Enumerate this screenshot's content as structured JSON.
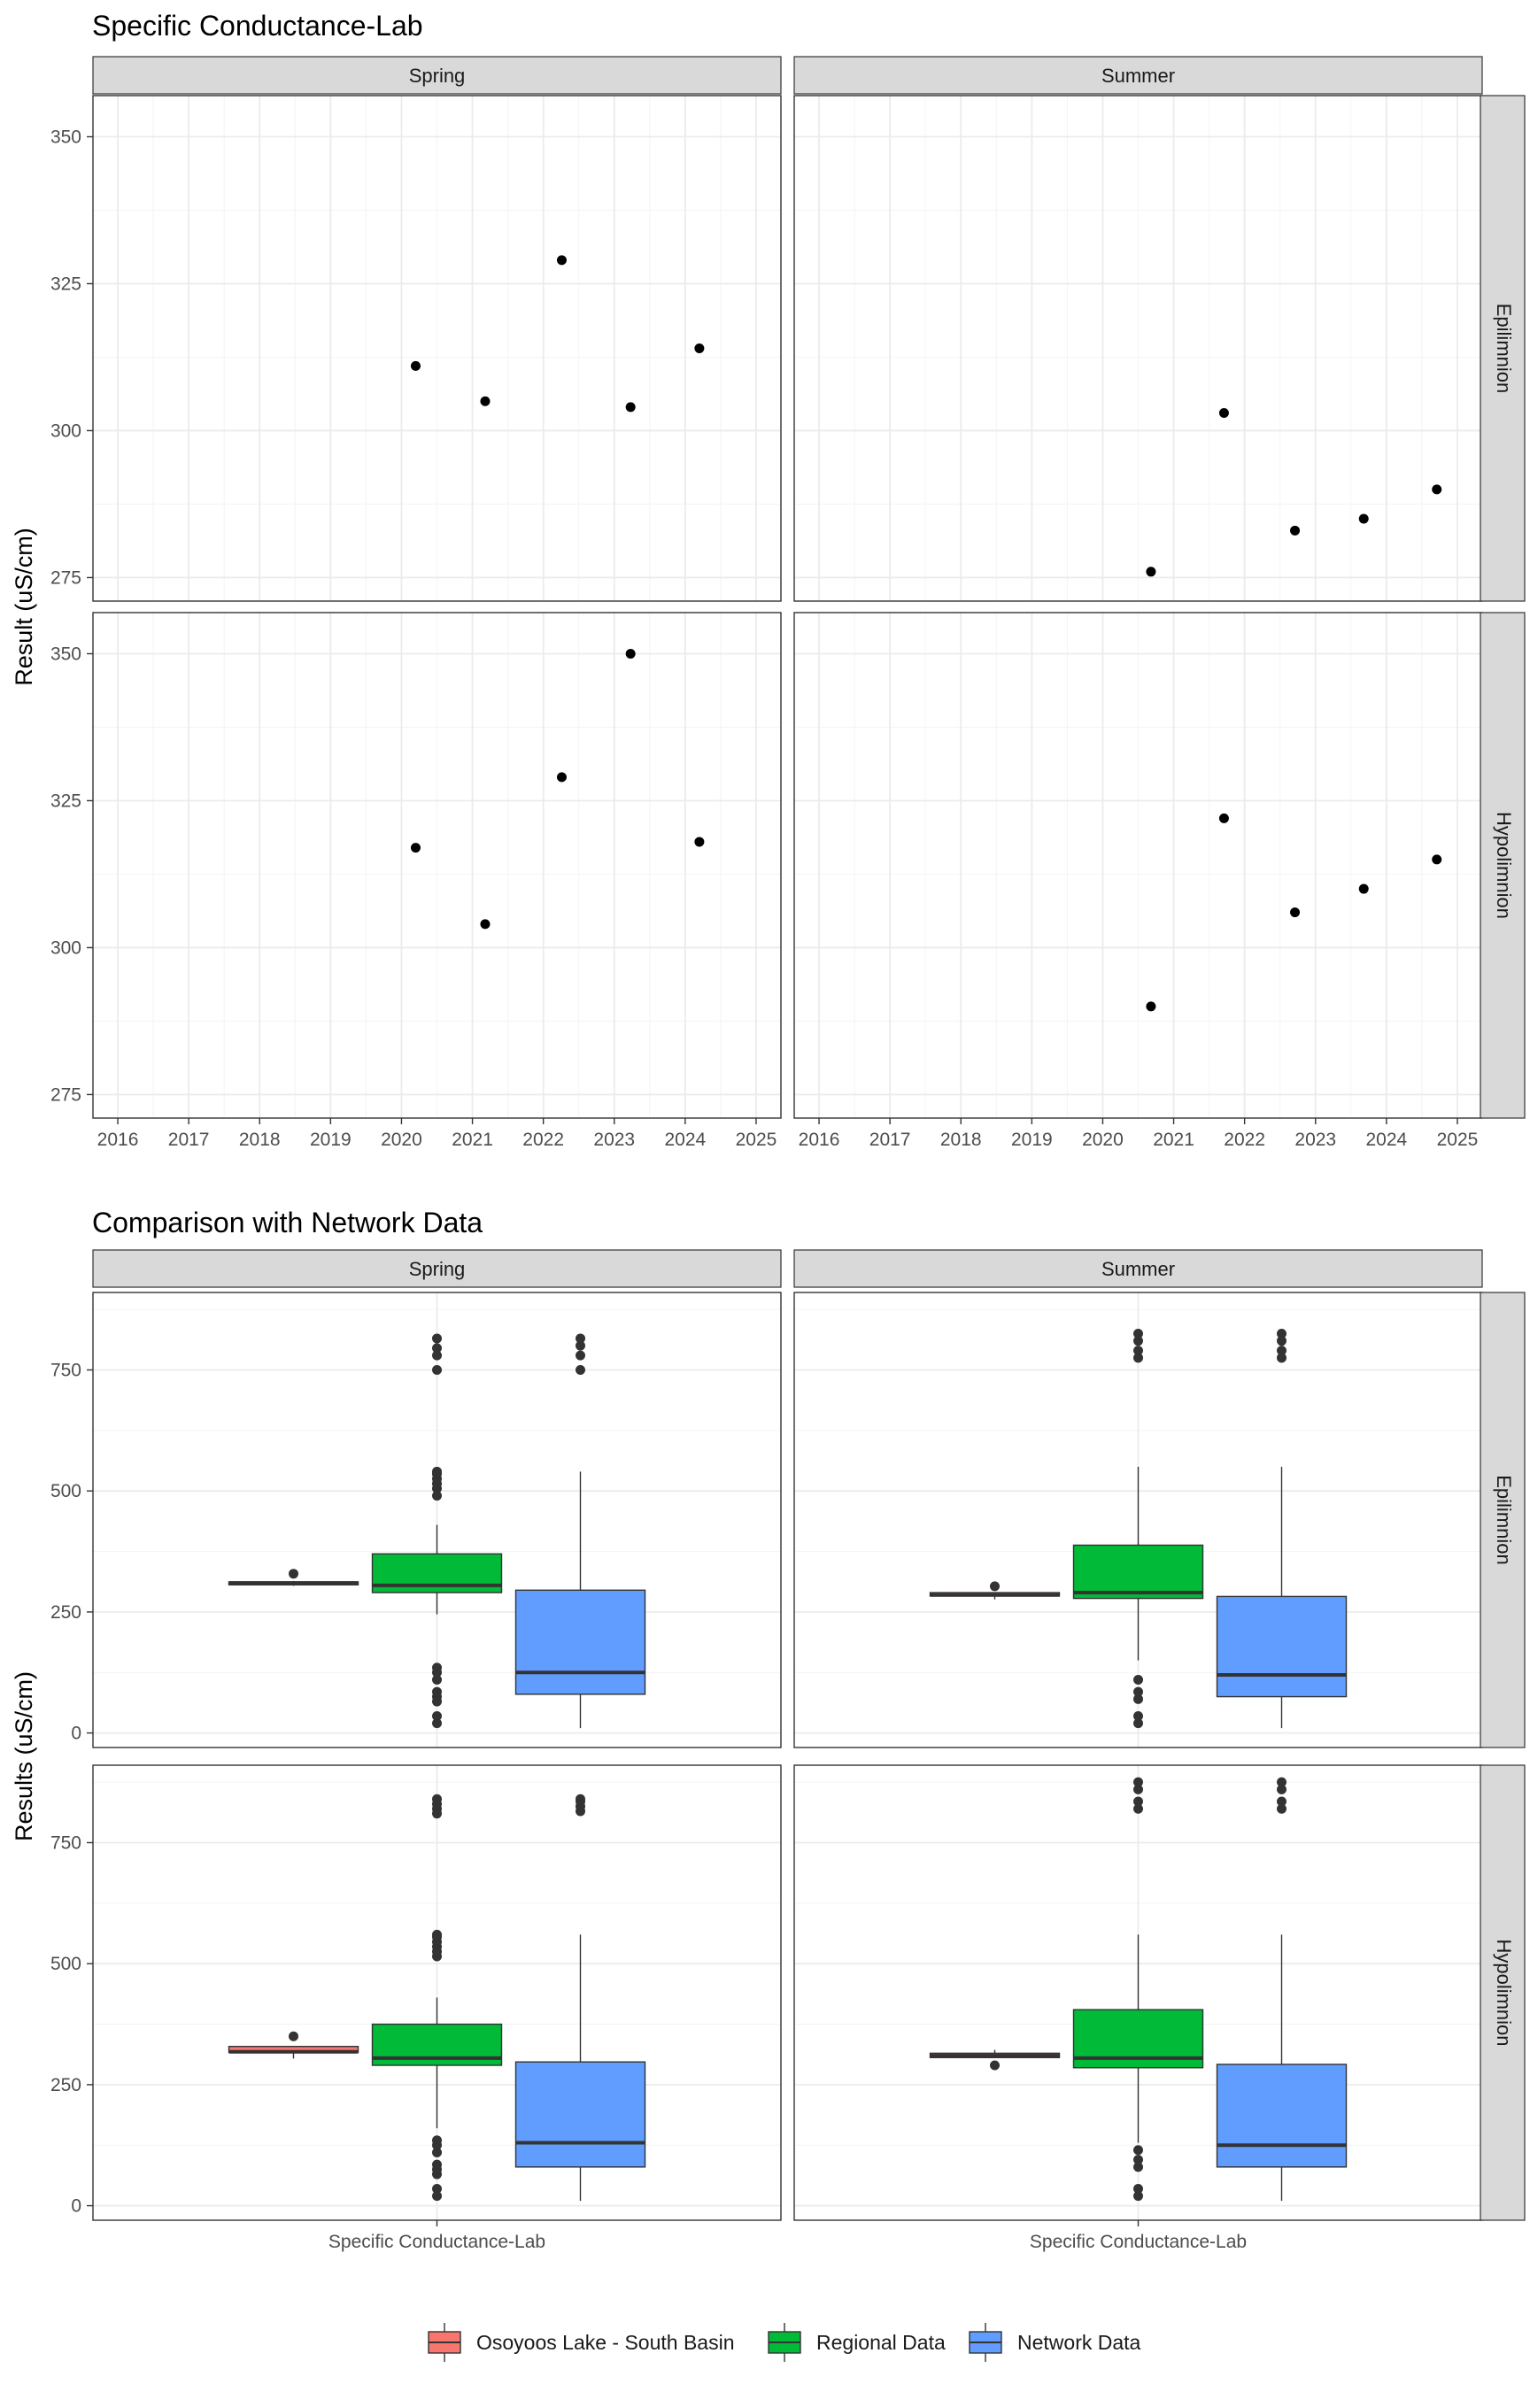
{
  "chart_data": [
    {
      "type": "scatter",
      "title": "Specific Conductance-Lab",
      "ylabel": "Result (uS/cm)",
      "xlabel": "",
      "xlim": [
        2015.65,
        2025.35
      ],
      "ylim": [
        271,
        357
      ],
      "xticks": [
        "2016",
        "2017",
        "2018",
        "2019",
        "2020",
        "2021",
        "2022",
        "2023",
        "2024",
        "2025"
      ],
      "yticks": [
        275,
        300,
        325,
        350
      ],
      "grid": true,
      "facet_cols": [
        "Spring",
        "Summer"
      ],
      "facet_rows": [
        "Epilimnion",
        "Hypolimnion"
      ],
      "panels": [
        {
          "col": "Spring",
          "row": "Epilimnion",
          "points": [
            {
              "x": 2020.2,
              "y": 311
            },
            {
              "x": 2021.18,
              "y": 305
            },
            {
              "x": 2022.26,
              "y": 329
            },
            {
              "x": 2023.23,
              "y": 304
            },
            {
              "x": 2024.2,
              "y": 314
            }
          ]
        },
        {
          "col": "Summer",
          "row": "Epilimnion",
          "points": [
            {
              "x": 2020.68,
              "y": 276
            },
            {
              "x": 2021.71,
              "y": 303
            },
            {
              "x": 2022.71,
              "y": 283
            },
            {
              "x": 2023.68,
              "y": 285
            },
            {
              "x": 2024.71,
              "y": 290
            }
          ]
        },
        {
          "col": "Spring",
          "row": "Hypolimnion",
          "points": [
            {
              "x": 2020.2,
              "y": 317
            },
            {
              "x": 2021.18,
              "y": 304
            },
            {
              "x": 2022.26,
              "y": 329
            },
            {
              "x": 2023.23,
              "y": 350
            },
            {
              "x": 2024.2,
              "y": 318
            }
          ]
        },
        {
          "col": "Summer",
          "row": "Hypolimnion",
          "points": [
            {
              "x": 2020.68,
              "y": 290
            },
            {
              "x": 2021.71,
              "y": 322
            },
            {
              "x": 2022.71,
              "y": 306
            },
            {
              "x": 2023.68,
              "y": 310
            },
            {
              "x": 2024.71,
              "y": 315
            }
          ]
        }
      ]
    },
    {
      "type": "box",
      "title": "Comparison with Network Data",
      "ylabel": "Results (uS/cm)",
      "xlabel": "",
      "category": "Specific Conductance-Lab",
      "ylim": [
        -30,
        910
      ],
      "yticks": [
        0,
        250,
        500,
        750
      ],
      "grid": true,
      "facet_cols": [
        "Spring",
        "Summer"
      ],
      "facet_rows": [
        "Epilimnion",
        "Hypolimnion"
      ],
      "series": [
        {
          "name": "Osoyoos Lake - South Basin",
          "color": "#F8766D"
        },
        {
          "name": "Regional Data",
          "color": "#00BA38"
        },
        {
          "name": "Network Data",
          "color": "#619CFF"
        }
      ],
      "legend_position": "bottom",
      "panels": [
        {
          "col": "Spring",
          "row": "Epilimnion",
          "boxes": [
            {
              "series": "Osoyoos Lake - South Basin",
              "q1": 306,
              "median": 310,
              "q3": 312,
              "whisker_low": 304,
              "whisker_high": 314,
              "outliers": [
                329
              ]
            },
            {
              "series": "Regional Data",
              "q1": 290,
              "median": 305,
              "q3": 370,
              "whisker_low": 245,
              "whisker_high": 430,
              "outliers": [
                20,
                35,
                65,
                75,
                85,
                110,
                125,
                135,
                490,
                505,
                515,
                525,
                535,
                540,
                750,
                780,
                795,
                815
              ]
            },
            {
              "series": "Network Data",
              "q1": 80,
              "median": 125,
              "q3": 295,
              "whisker_low": 10,
              "whisker_high": 540,
              "outliers": [
                750,
                780,
                800,
                815
              ]
            }
          ]
        },
        {
          "col": "Summer",
          "row": "Epilimnion",
          "boxes": [
            {
              "series": "Osoyoos Lake - South Basin",
              "q1": 283,
              "median": 285,
              "q3": 290,
              "whisker_low": 276,
              "whisker_high": 290,
              "outliers": [
                303
              ]
            },
            {
              "series": "Regional Data",
              "q1": 278,
              "median": 290,
              "q3": 388,
              "whisker_low": 150,
              "whisker_high": 550,
              "outliers": [
                20,
                35,
                70,
                85,
                110,
                775,
                790,
                810,
                825
              ]
            },
            {
              "series": "Network Data",
              "q1": 75,
              "median": 120,
              "q3": 282,
              "whisker_low": 10,
              "whisker_high": 550,
              "outliers": [
                775,
                790,
                810,
                825
              ]
            }
          ]
        },
        {
          "col": "Spring",
          "row": "Hypolimnion",
          "boxes": [
            {
              "series": "Osoyoos Lake - South Basin",
              "q1": 317,
              "median": 318,
              "q3": 329,
              "whisker_low": 304,
              "whisker_high": 329,
              "outliers": [
                350
              ]
            },
            {
              "series": "Regional Data",
              "q1": 290,
              "median": 305,
              "q3": 375,
              "whisker_low": 160,
              "whisker_high": 430,
              "outliers": [
                20,
                35,
                65,
                75,
                85,
                110,
                125,
                135,
                515,
                525,
                535,
                545,
                555,
                560,
                810,
                820,
                830,
                840
              ]
            },
            {
              "series": "Network Data",
              "q1": 80,
              "median": 130,
              "q3": 297,
              "whisker_low": 10,
              "whisker_high": 560,
              "outliers": [
                815,
                825,
                835,
                840
              ]
            }
          ]
        },
        {
          "col": "Summer",
          "row": "Hypolimnion",
          "boxes": [
            {
              "series": "Osoyoos Lake - South Basin",
              "q1": 306,
              "median": 310,
              "q3": 315,
              "whisker_low": 306,
              "whisker_high": 322,
              "outliers": [
                290
              ]
            },
            {
              "series": "Regional Data",
              "q1": 285,
              "median": 305,
              "q3": 405,
              "whisker_low": 130,
              "whisker_high": 560,
              "outliers": [
                20,
                35,
                80,
                95,
                115,
                820,
                835,
                860,
                875
              ]
            },
            {
              "series": "Network Data",
              "q1": 80,
              "median": 125,
              "q3": 292,
              "whisker_low": 10,
              "whisker_high": 560,
              "outliers": [
                820,
                835,
                860,
                875
              ]
            }
          ]
        }
      ]
    }
  ]
}
